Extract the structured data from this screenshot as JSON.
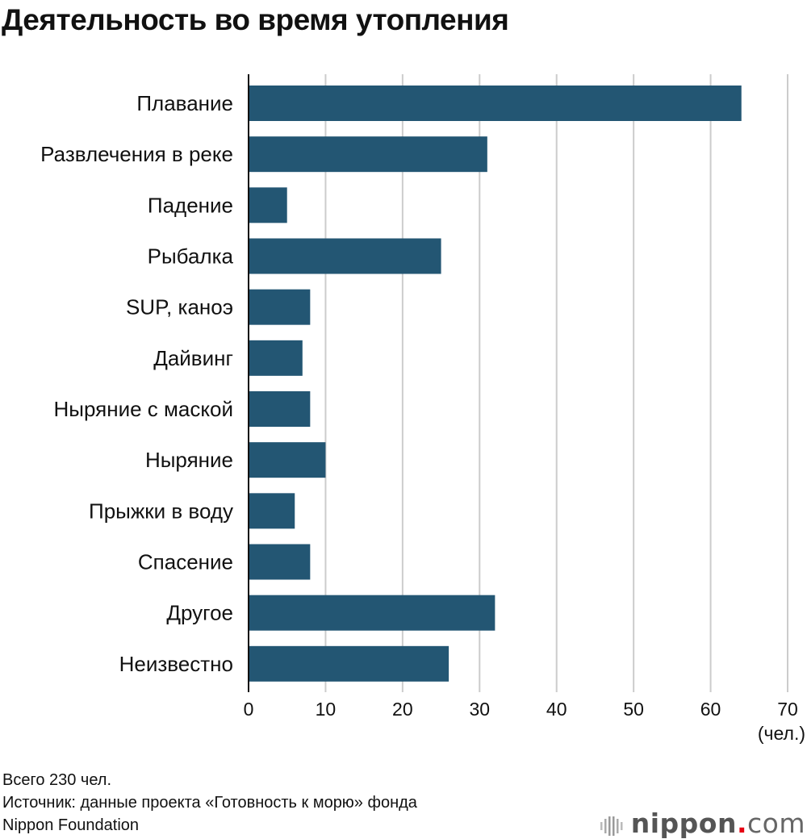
{
  "chart_data": {
    "type": "bar",
    "orientation": "horizontal",
    "title": "Деятельность во время утопления",
    "categories": [
      "Плавание",
      "Развлечения в реке",
      "Падение",
      "Рыбалка",
      "SUP, каноэ",
      "Дайвинг",
      "Ныряние с маской",
      "Ныряние",
      "Прыжки в воду",
      "Спасение",
      "Другое",
      "Неизвестно"
    ],
    "values": [
      64,
      31,
      5,
      25,
      8,
      7,
      8,
      10,
      6,
      8,
      32,
      26
    ],
    "xlim": [
      0,
      70
    ],
    "xticks": [
      "0",
      "10",
      "20",
      "30",
      "40",
      "50",
      "60",
      "70"
    ],
    "xunit": "(чел.)",
    "grid": true,
    "bar_color": "#235673",
    "grid_color": "#cccccc"
  },
  "footer": {
    "total": "Всего 230 чел.",
    "source_line1": "Источник: данные проекта «Готовность к морю» фонда",
    "source_line2": "Nippon Foundation"
  },
  "logo": {
    "text_main": "nippon",
    "text_dot": ".",
    "text_tld": "com",
    "dot_color": "#e60012"
  }
}
